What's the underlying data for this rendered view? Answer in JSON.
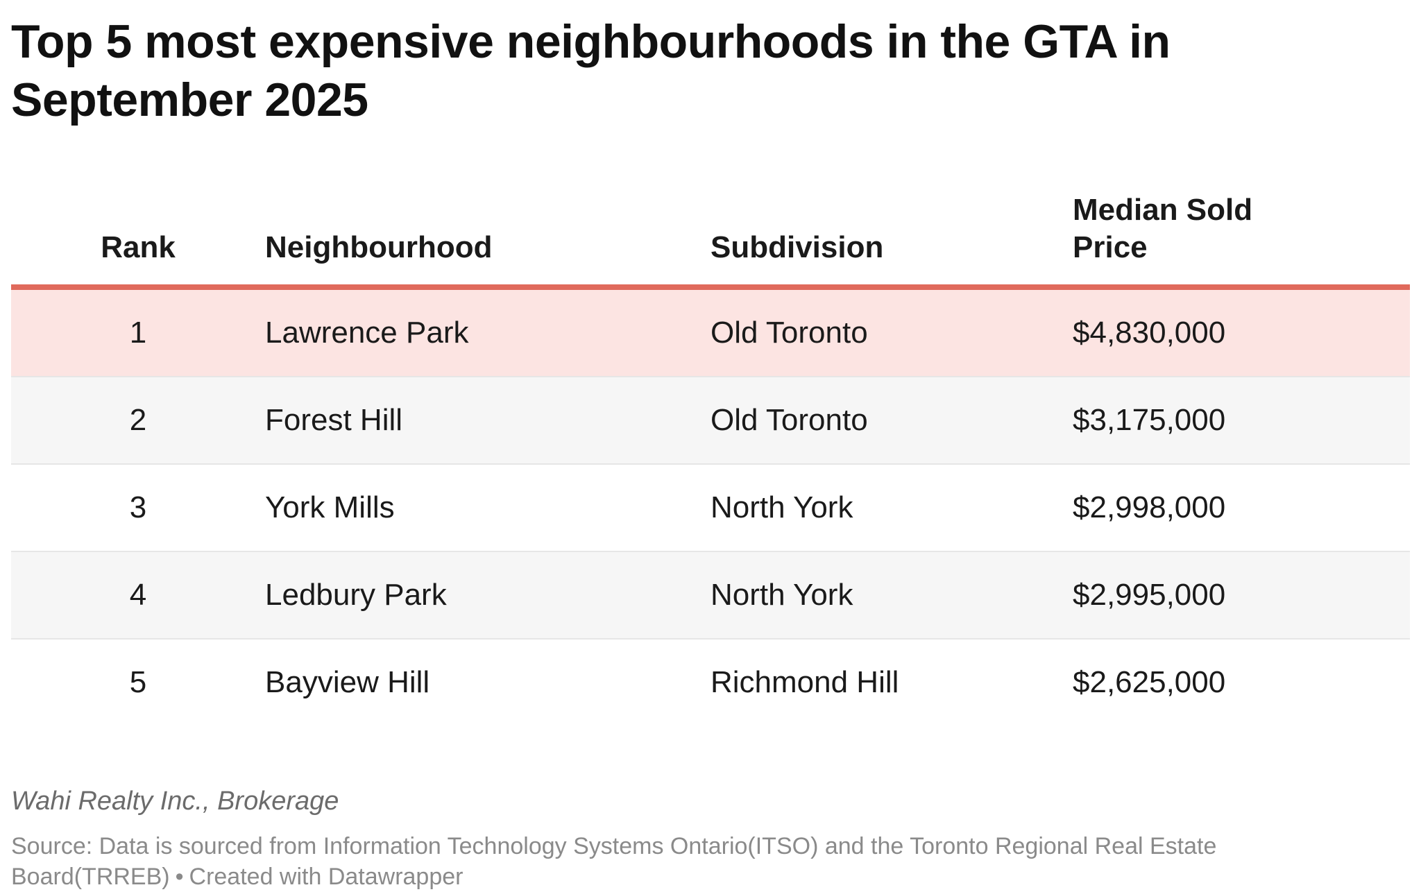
{
  "chart_data": {
    "type": "table",
    "title": "Top 5 most expensive neighbourhoods in the GTA in September 2025",
    "columns": [
      "Rank",
      "Neighbourhood",
      "Subdivision",
      "Median Sold Price"
    ],
    "rows": [
      {
        "rank": "1",
        "neighbourhood": "Lawrence Park",
        "subdivision": "Old Toronto",
        "price": "$4,830,000",
        "price_value": 4830000,
        "highlight": true
      },
      {
        "rank": "2",
        "neighbourhood": "Forest Hill",
        "subdivision": "Old Toronto",
        "price": "$3,175,000",
        "price_value": 3175000,
        "highlight": false
      },
      {
        "rank": "3",
        "neighbourhood": "York Mills",
        "subdivision": "North York",
        "price": "$2,998,000",
        "price_value": 2998000,
        "highlight": false
      },
      {
        "rank": "4",
        "neighbourhood": "Ledbury Park",
        "subdivision": "North York",
        "price": "$2,995,000",
        "price_value": 2995000,
        "highlight": false
      },
      {
        "rank": "5",
        "neighbourhood": "Bayview Hill",
        "subdivision": "Richmond Hill",
        "price": "$2,625,000",
        "price_value": 2625000,
        "highlight": false
      }
    ],
    "byline": "Wahi Realty Inc., Brokerage",
    "source": "Source: Data is sourced from Information Technology Systems Ontario(ITSO) and the Toronto Regional Real Estate Board(TRREB)",
    "credit": "Created with Datawrapper"
  },
  "colors": {
    "header_rule": "#e06a5c",
    "highlight_row": "#fce4e2",
    "alt_row": "#f6f6f6",
    "divider": "#e6e6e6",
    "footer_text": "#8a8a8a"
  }
}
